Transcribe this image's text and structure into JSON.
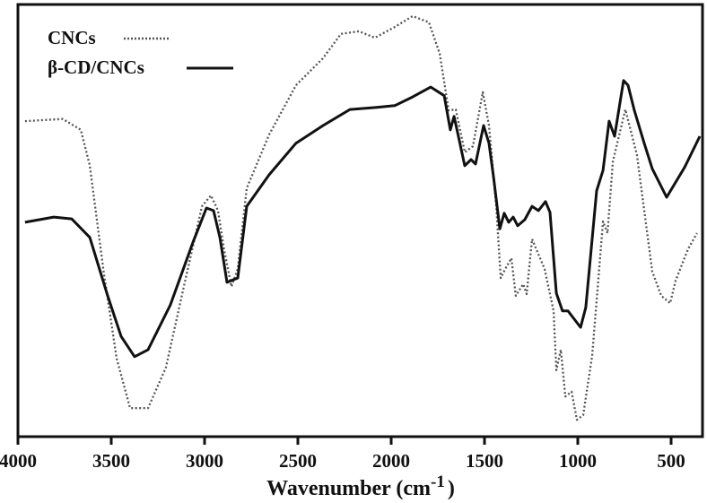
{
  "chart_data": {
    "type": "line",
    "title": "",
    "xlabel": "Wavenumber (cm",
    "xlabel_sup": "-1",
    "xlabel_close": ")",
    "ylabel": "",
    "xlim": [
      4000,
      330
    ],
    "ylim": [
      0,
      100
    ],
    "x_reversed": true,
    "grid": false,
    "legend_position": "top-left",
    "xticks": [
      4000,
      3500,
      3000,
      2500,
      2000,
      1500,
      1000,
      500
    ],
    "xtick_labels": [
      "4000",
      "3500",
      "3000",
      "2500",
      "2000",
      "1500",
      "1000",
      "500"
    ],
    "series": [
      {
        "name": "CNCs",
        "style": "dotted",
        "color": "#555555",
        "points": [
          [
            3962,
            73.0
          ],
          [
            3760,
            73.5
          ],
          [
            3663,
            71.0
          ],
          [
            3615,
            62.7
          ],
          [
            3543,
            38.8
          ],
          [
            3471,
            18.1
          ],
          [
            3399,
            6.6
          ],
          [
            3303,
            6.6
          ],
          [
            3207,
            16.0
          ],
          [
            3111,
            34.7
          ],
          [
            3014,
            53.3
          ],
          [
            2966,
            55.8
          ],
          [
            2928,
            52.3
          ],
          [
            2894,
            43.0
          ],
          [
            2856,
            34.7
          ],
          [
            2822,
            38.8
          ],
          [
            2774,
            57.5
          ],
          [
            2654,
            69.9
          ],
          [
            2510,
            81.3
          ],
          [
            2365,
            87.6
          ],
          [
            2269,
            93.2
          ],
          [
            2173,
            93.8
          ],
          [
            2087,
            92.3
          ],
          [
            1981,
            94.8
          ],
          [
            1885,
            97.3
          ],
          [
            1798,
            95.9
          ],
          [
            1740,
            88.6
          ],
          [
            1692,
            75.5
          ],
          [
            1654,
            75.7
          ],
          [
            1606,
            65.8
          ],
          [
            1562,
            67.2
          ],
          [
            1509,
            79.7
          ],
          [
            1476,
            72.0
          ],
          [
            1437,
            53.3
          ],
          [
            1413,
            36.7
          ],
          [
            1389,
            38.8
          ],
          [
            1356,
            41.3
          ],
          [
            1332,
            32.6
          ],
          [
            1293,
            35.3
          ],
          [
            1274,
            33.0
          ],
          [
            1245,
            45.7
          ],
          [
            1178,
            38.8
          ],
          [
            1130,
            29.1
          ],
          [
            1115,
            15.4
          ],
          [
            1091,
            20.1
          ],
          [
            1067,
            9.3
          ],
          [
            1033,
            10.4
          ],
          [
            1005,
            3.9
          ],
          [
            971,
            5.0
          ],
          [
            923,
            18.7
          ],
          [
            865,
            49.8
          ],
          [
            841,
            47.1
          ],
          [
            812,
            63.7
          ],
          [
            745,
            75.7
          ],
          [
            683,
            65.2
          ],
          [
            601,
            38.2
          ],
          [
            553,
            32.6
          ],
          [
            505,
            30.9
          ],
          [
            476,
            36.1
          ],
          [
            409,
            43.4
          ],
          [
            361,
            47.1
          ]
        ]
      },
      {
        "name": "β-CD/CNCs",
        "style": "solid",
        "color": "#111111",
        "points": [
          [
            3962,
            49.6
          ],
          [
            3808,
            50.8
          ],
          [
            3712,
            50.4
          ],
          [
            3615,
            46.1
          ],
          [
            3519,
            32.6
          ],
          [
            3447,
            23.2
          ],
          [
            3375,
            18.5
          ],
          [
            3303,
            20.1
          ],
          [
            3183,
            30.5
          ],
          [
            3062,
            45.0
          ],
          [
            2990,
            52.9
          ],
          [
            2952,
            52.3
          ],
          [
            2918,
            46.1
          ],
          [
            2880,
            35.7
          ],
          [
            2846,
            36.3
          ],
          [
            2822,
            36.7
          ],
          [
            2774,
            53.3
          ],
          [
            2654,
            60.6
          ],
          [
            2510,
            67.9
          ],
          [
            2365,
            72.0
          ],
          [
            2221,
            75.7
          ],
          [
            2077,
            76.2
          ],
          [
            1981,
            76.6
          ],
          [
            1885,
            78.6
          ],
          [
            1788,
            80.9
          ],
          [
            1716,
            78.9
          ],
          [
            1683,
            71.0
          ],
          [
            1663,
            74.1
          ],
          [
            1606,
            62.7
          ],
          [
            1572,
            64.1
          ],
          [
            1548,
            63.1
          ],
          [
            1505,
            72.0
          ],
          [
            1476,
            67.9
          ],
          [
            1452,
            60.2
          ],
          [
            1418,
            48.1
          ],
          [
            1394,
            51.7
          ],
          [
            1370,
            49.6
          ],
          [
            1346,
            50.8
          ],
          [
            1322,
            48.8
          ],
          [
            1284,
            50.2
          ],
          [
            1245,
            53.3
          ],
          [
            1211,
            52.3
          ],
          [
            1173,
            54.4
          ],
          [
            1149,
            51.9
          ],
          [
            1115,
            33.2
          ],
          [
            1082,
            29.1
          ],
          [
            1053,
            29.1
          ],
          [
            985,
            25.3
          ],
          [
            957,
            29.9
          ],
          [
            899,
            56.9
          ],
          [
            865,
            61.6
          ],
          [
            832,
            73.0
          ],
          [
            803,
            69.5
          ],
          [
            755,
            82.4
          ],
          [
            731,
            81.3
          ],
          [
            697,
            75.5
          ],
          [
            644,
            67.9
          ],
          [
            601,
            62.0
          ],
          [
            524,
            55.4
          ],
          [
            481,
            58.5
          ],
          [
            428,
            62.3
          ],
          [
            346,
            69.5
          ]
        ]
      }
    ]
  }
}
